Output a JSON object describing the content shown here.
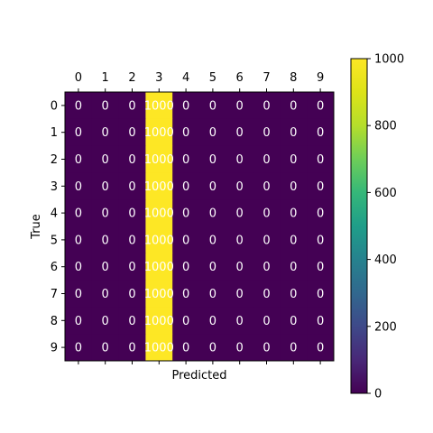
{
  "chart_data": {
    "type": "heatmap",
    "title": "",
    "xlabel": "Predicted",
    "ylabel": "True",
    "x_categories": [
      "0",
      "1",
      "2",
      "3",
      "4",
      "5",
      "6",
      "7",
      "8",
      "9"
    ],
    "y_categories": [
      "0",
      "1",
      "2",
      "3",
      "4",
      "5",
      "6",
      "7",
      "8",
      "9"
    ],
    "x_tick_position": "top",
    "values": [
      [
        0,
        0,
        0,
        1000,
        0,
        0,
        0,
        0,
        0,
        0
      ],
      [
        0,
        0,
        0,
        1000,
        0,
        0,
        0,
        0,
        0,
        0
      ],
      [
        0,
        0,
        0,
        1000,
        0,
        0,
        0,
        0,
        0,
        0
      ],
      [
        0,
        0,
        0,
        1000,
        0,
        0,
        0,
        0,
        0,
        0
      ],
      [
        0,
        0,
        0,
        1000,
        0,
        0,
        0,
        0,
        0,
        0
      ],
      [
        0,
        0,
        0,
        1000,
        0,
        0,
        0,
        0,
        0,
        0
      ],
      [
        0,
        0,
        0,
        1000,
        0,
        0,
        0,
        0,
        0,
        0
      ],
      [
        0,
        0,
        0,
        1000,
        0,
        0,
        0,
        0,
        0,
        0
      ],
      [
        0,
        0,
        0,
        1000,
        0,
        0,
        0,
        0,
        0,
        0
      ],
      [
        0,
        0,
        0,
        1000,
        0,
        0,
        0,
        0,
        0,
        0
      ]
    ],
    "colormap": "viridis",
    "colors": {
      "low": "#440154",
      "high": "#fde725"
    },
    "colorbar": {
      "range": [
        0,
        1000
      ],
      "ticks": [
        0,
        200,
        400,
        600,
        800,
        1000
      ],
      "placement": "right"
    },
    "grid": false
  }
}
